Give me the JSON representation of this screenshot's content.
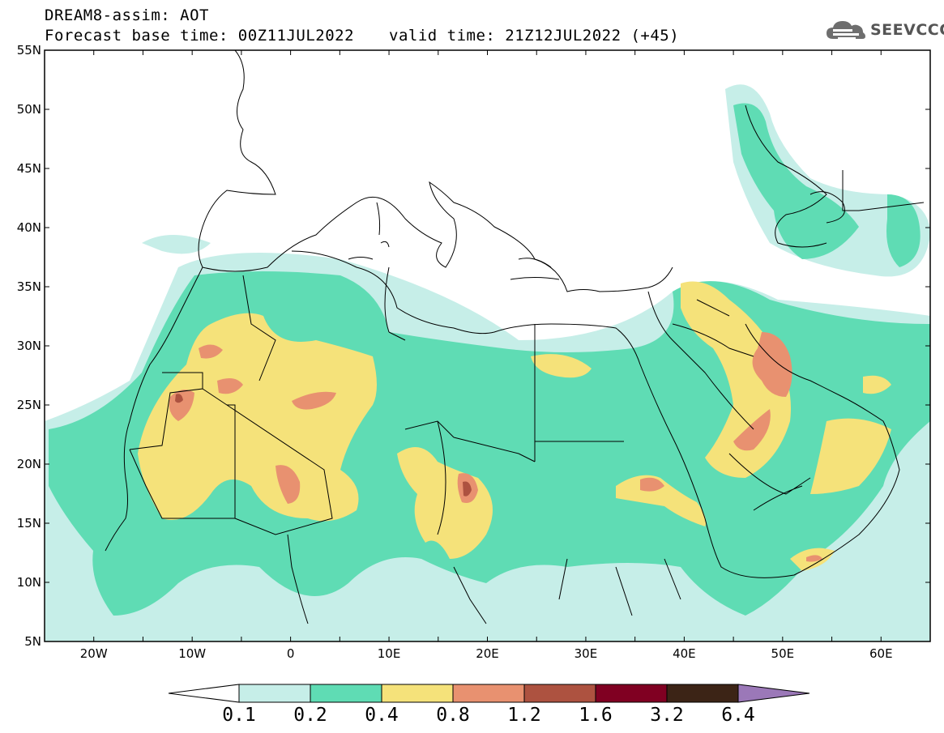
{
  "header": {
    "line1": "DREAM8-assim: AOT",
    "line2": "Forecast base time: 00Z11JUL2022",
    "valid": "valid time: 21Z12JUL2022 (+45)"
  },
  "logo": {
    "text": "SEEVCCC",
    "icon": "cloud-icon"
  },
  "axes": {
    "lat_labels": [
      "55N",
      "50N",
      "45N",
      "40N",
      "35N",
      "30N",
      "25N",
      "20N",
      "15N",
      "10N",
      "5N"
    ],
    "lon_labels": [
      "20W",
      "10W",
      "0",
      "10E",
      "20E",
      "30E",
      "40E",
      "50E",
      "60E"
    ],
    "lat_range": [
      5,
      55
    ],
    "lon_range": [
      -25,
      65
    ]
  },
  "colorbar": {
    "thresholds": [
      "0.1",
      "0.2",
      "0.4",
      "0.8",
      "1.2",
      "1.6",
      "3.2",
      "6.4"
    ],
    "colors": [
      "#ffffff",
      "#c6eee8",
      "#5fdcb4",
      "#f5e27a",
      "#e89170",
      "#ad5240",
      "#800022",
      "#3c2416",
      "#9b78b8"
    ]
  },
  "chart_data": {
    "type": "heatmap",
    "title": "DREAM8-assim: AOT",
    "variable": "AOT",
    "xlim": [
      -25,
      65
    ],
    "ylim": [
      5,
      55
    ],
    "levels": [
      0.1,
      0.2,
      0.4,
      0.8,
      1.2,
      1.6,
      3.2,
      6.4
    ]
  }
}
